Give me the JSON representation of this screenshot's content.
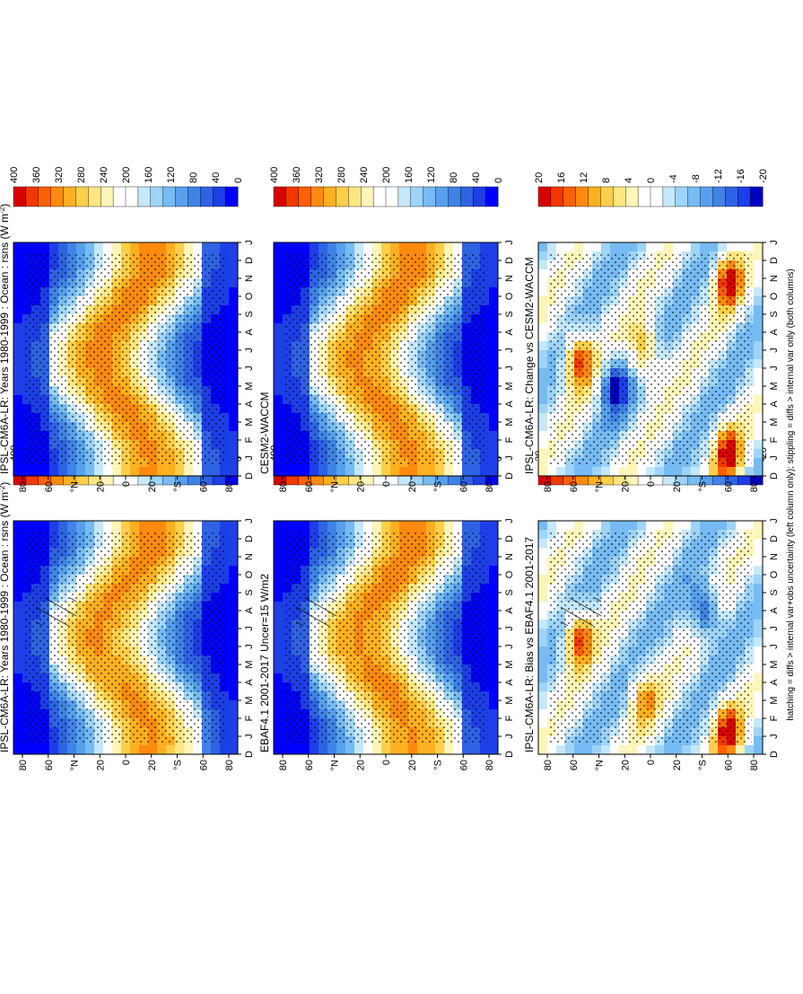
{
  "footnote": "hatching = diffs > internal var+obs uncertainty (left column only); stippling = diffs > internal var only (both columns)",
  "colors": {
    "abs_scale": [
      "#0000ff",
      "#1d3fe8",
      "#2e63e4",
      "#3f83e6",
      "#56a0ee",
      "#76bbf3",
      "#9dd4f8",
      "#c5e8fb",
      "#ffffff",
      "#ffffff",
      "#fff5b8",
      "#ffe680",
      "#ffcf4a",
      "#ffb020",
      "#ff8a10",
      "#ff6000",
      "#f23800",
      "#d90000"
    ],
    "diff_scale": [
      "#0000c0",
      "#1d3fe8",
      "#2e63e4",
      "#3f83e6",
      "#56a0ee",
      "#76bbf3",
      "#9dd4f8",
      "#c5e8fb",
      "#ffffff",
      "#ffffff",
      "#fff5b8",
      "#ffe680",
      "#ffcf4a",
      "#ffb020",
      "#ff8a10",
      "#ff6000",
      "#f23800",
      "#d90000"
    ]
  },
  "chart_data": [
    {
      "type": "heatmap",
      "title": "IPSL-CM6A-LR: Years 1980-1999 : Ocean : rsns (W m",
      "title_sup": "-2",
      "title_end": ")",
      "x_ticks": [
        "D",
        "J",
        "F",
        "M",
        "A",
        "M",
        "J",
        "J",
        "A",
        "S",
        "O",
        "N",
        "D",
        "J"
      ],
      "y_ticks": [
        "80",
        "60",
        "°N",
        "20",
        "0",
        "20",
        "°S",
        "60",
        "80"
      ],
      "colorbar_ticks": [
        "400",
        "360",
        "320",
        "280",
        "240",
        "200",
        "160",
        "120",
        "80",
        "40",
        "0"
      ],
      "scale": "absolute",
      "hatching": true,
      "regions": [
        {
          "lat": 78,
          "month": 1,
          "value": 10
        },
        {
          "lat": 45,
          "month": 1,
          "value": 60
        },
        {
          "lat": 20,
          "month": 6,
          "value": 300
        },
        {
          "lat": 0,
          "month": 6,
          "value": 240
        },
        {
          "lat": -25,
          "month": 1,
          "value": 290
        },
        {
          "lat": -55,
          "month": 1,
          "value": 200
        },
        {
          "lat": -65,
          "month": 6,
          "value": 20
        }
      ]
    },
    {
      "type": "heatmap",
      "title": "IPSL-CM6A-LR: Years 1980-1999 : Ocean : rsns (W m",
      "title_sup": "-2",
      "title_end": ")",
      "x_ticks": [
        "D",
        "J",
        "F",
        "M",
        "A",
        "M",
        "J",
        "J",
        "A",
        "S",
        "O",
        "N",
        "D",
        "J"
      ],
      "y_ticks": [
        "80",
        "60",
        "°N",
        "20",
        "0",
        "20",
        "°S",
        "60",
        "80"
      ],
      "colorbar_ticks": [
        "400",
        "360",
        "320",
        "280",
        "240",
        "200",
        "160",
        "120",
        "80",
        "40",
        "0"
      ],
      "scale": "absolute",
      "hatching": false,
      "regions": [
        {
          "lat": 78,
          "month": 1,
          "value": 10
        },
        {
          "lat": 45,
          "month": 1,
          "value": 60
        },
        {
          "lat": 20,
          "month": 6,
          "value": 300
        },
        {
          "lat": -25,
          "month": 1,
          "value": 290
        },
        {
          "lat": -65,
          "month": 6,
          "value": 20
        }
      ]
    },
    {
      "type": "heatmap",
      "title": "EBAF4.1 2001-2017 Uncer=15 W/m2",
      "title_sup": "",
      "title_end": "",
      "x_ticks": [
        "D",
        "J",
        "F",
        "M",
        "A",
        "M",
        "J",
        "J",
        "A",
        "S",
        "O",
        "N",
        "D",
        "J"
      ],
      "y_ticks": [
        "80",
        "60",
        "°N",
        "20",
        "0",
        "20",
        "°S",
        "60",
        "80"
      ],
      "colorbar_ticks": [
        "400",
        "360",
        "320",
        "280",
        "240",
        "200",
        "160",
        "120",
        "80",
        "40",
        "0"
      ],
      "scale": "absolute",
      "hatching": true,
      "regions": [
        {
          "lat": 78,
          "month": 1,
          "value": 10
        },
        {
          "lat": 20,
          "month": 6,
          "value": 280
        },
        {
          "lat": -25,
          "month": 1,
          "value": 280
        },
        {
          "lat": -65,
          "month": 6,
          "value": 20
        }
      ]
    },
    {
      "type": "heatmap",
      "title": "CESM2-WACCM",
      "title_sup": "",
      "title_end": "",
      "x_ticks": [
        "D",
        "J",
        "F",
        "M",
        "A",
        "M",
        "J",
        "J",
        "A",
        "S",
        "O",
        "N",
        "D",
        "J"
      ],
      "y_ticks": [
        "80",
        "60",
        "°N",
        "20",
        "0",
        "20",
        "°S",
        "60",
        "80"
      ],
      "colorbar_ticks": [
        "400",
        "360",
        "320",
        "280",
        "240",
        "200",
        "160",
        "120",
        "80",
        "40",
        "0"
      ],
      "scale": "absolute",
      "hatching": false,
      "regions": [
        {
          "lat": 78,
          "month": 1,
          "value": 10
        },
        {
          "lat": 20,
          "month": 6,
          "value": 290
        },
        {
          "lat": -25,
          "month": 1,
          "value": 290
        },
        {
          "lat": -65,
          "month": 6,
          "value": 20
        }
      ]
    },
    {
      "type": "heatmap",
      "title": "IPSL-CM6A-LR: Bias vs EBAF4.1 2001-2017",
      "title_sup": "",
      "title_end": "",
      "x_ticks": [
        "D",
        "J",
        "F",
        "M",
        "A",
        "M",
        "J",
        "J",
        "A",
        "S",
        "O",
        "N",
        "D",
        "J"
      ],
      "y_ticks": [
        "80",
        "60",
        "°N",
        "20",
        "0",
        "20",
        "°S",
        "60",
        "80"
      ],
      "colorbar_ticks": [
        "20",
        "16",
        "12",
        "8",
        "4",
        "0",
        "-4",
        "-8",
        "-12",
        "-16",
        "-20"
      ],
      "scale": "difference",
      "hatching": true,
      "regions": [
        {
          "lat": 60,
          "month": 6.5,
          "value": 20
        },
        {
          "lat": 5,
          "month": 3,
          "value": 12
        },
        {
          "lat": -65,
          "month": 1,
          "value": 20
        },
        {
          "lat": -45,
          "month": 8,
          "value": -16
        }
      ]
    },
    {
      "type": "heatmap",
      "title": "IPSL-CM6A-LR: Change vs CESM2-WACCM",
      "title_sup": "",
      "title_end": "",
      "x_ticks": [
        "D",
        "J",
        "F",
        "M",
        "A",
        "M",
        "J",
        "J",
        "A",
        "S",
        "O",
        "N",
        "D",
        "J"
      ],
      "y_ticks": [
        "80",
        "60",
        "°N",
        "20",
        "0",
        "20",
        "°S",
        "60",
        "80"
      ],
      "colorbar_ticks": [
        "20",
        "16",
        "12",
        "8",
        "4",
        "0",
        "-4",
        "-8",
        "-12",
        "-16",
        "-20"
      ],
      "scale": "difference",
      "hatching": false,
      "regions": [
        {
          "lat": 60,
          "month": 6.5,
          "value": 20
        },
        {
          "lat": 5,
          "month": 7,
          "value": 16
        },
        {
          "lat": -65,
          "month": 1,
          "value": 20
        },
        {
          "lat": -65,
          "month": 11,
          "value": 20
        },
        {
          "lat": 30,
          "month": 5,
          "value": -16
        }
      ]
    }
  ]
}
